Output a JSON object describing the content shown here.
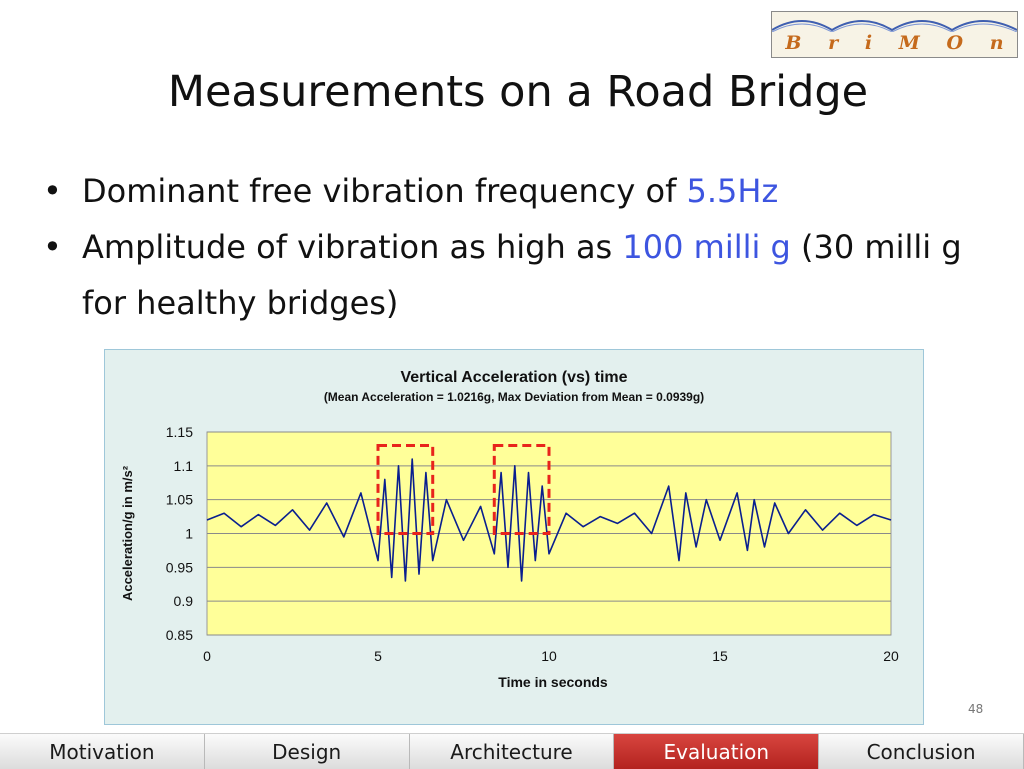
{
  "logo": {
    "letters": [
      "B",
      "r",
      "i",
      "M",
      "O",
      "n"
    ]
  },
  "slide": {
    "title": "Measurements on a Road Bridge",
    "bullets": [
      {
        "parts": [
          {
            "text": "Dominant free vibration frequency of ",
            "accent": false
          },
          {
            "text": "5.5Hz",
            "accent": true
          }
        ]
      },
      {
        "parts": [
          {
            "text": "Amplitude of vibration as high as ",
            "accent": false
          },
          {
            "text": "100 milli g",
            "accent": true
          },
          {
            "text": " (30 milli g for healthy bridges)",
            "accent": false
          }
        ]
      }
    ],
    "slide_number": "48"
  },
  "nav": {
    "items": [
      "Motivation",
      "Design",
      "Architecture",
      "Evaluation",
      "Conclusion"
    ],
    "active": "Evaluation"
  },
  "colors": {
    "accent_text": "#3d55e0",
    "plot_background": "#ffff99",
    "series_line": "#0a1f8f",
    "highlight_box": "#e8241c",
    "nav_active": "#c0302a"
  },
  "chart_data": {
    "type": "line",
    "title": "Vertical Acceleration (vs) time",
    "subtitle": "(Mean Acceleration  = 1.0216g,  Max Deviation  from Mean = 0.0939g)",
    "xlabel": "Time in seconds",
    "ylabel": "Acceleration/g in m/s²",
    "xlim": [
      0,
      20
    ],
    "ylim": [
      0.85,
      1.15
    ],
    "xticks": [
      "0",
      "5",
      "10",
      "15",
      "20"
    ],
    "yticks": [
      "0.85",
      "0.9",
      "0.95",
      "1",
      "1.05",
      "1.1",
      "1.15"
    ],
    "grid": true,
    "legend": "none",
    "mean": 1.0216,
    "max_deviation": 0.0939,
    "dominant_frequency_hz": 5.5,
    "series": [
      {
        "points": [
          [
            0.0,
            1.02
          ],
          [
            0.5,
            1.03
          ],
          [
            1.0,
            1.01
          ],
          [
            1.5,
            1.028
          ],
          [
            2.0,
            1.012
          ],
          [
            2.5,
            1.035
          ],
          [
            3.0,
            1.005
          ],
          [
            3.5,
            1.045
          ],
          [
            4.0,
            0.995
          ],
          [
            4.5,
            1.06
          ],
          [
            5.0,
            0.96
          ],
          [
            5.2,
            1.08
          ],
          [
            5.4,
            0.935
          ],
          [
            5.6,
            1.1
          ],
          [
            5.8,
            0.93
          ],
          [
            6.0,
            1.11
          ],
          [
            6.2,
            0.94
          ],
          [
            6.4,
            1.09
          ],
          [
            6.6,
            0.96
          ],
          [
            7.0,
            1.05
          ],
          [
            7.5,
            0.99
          ],
          [
            8.0,
            1.04
          ],
          [
            8.4,
            0.97
          ],
          [
            8.6,
            1.09
          ],
          [
            8.8,
            0.95
          ],
          [
            9.0,
            1.1
          ],
          [
            9.2,
            0.93
          ],
          [
            9.4,
            1.09
          ],
          [
            9.6,
            0.96
          ],
          [
            9.8,
            1.07
          ],
          [
            10.0,
            0.97
          ],
          [
            10.5,
            1.03
          ],
          [
            11.0,
            1.01
          ],
          [
            11.5,
            1.025
          ],
          [
            12.0,
            1.015
          ],
          [
            12.5,
            1.03
          ],
          [
            13.0,
            1.0
          ],
          [
            13.5,
            1.07
          ],
          [
            13.8,
            0.96
          ],
          [
            14.0,
            1.06
          ],
          [
            14.3,
            0.98
          ],
          [
            14.6,
            1.05
          ],
          [
            15.0,
            0.99
          ],
          [
            15.5,
            1.06
          ],
          [
            15.8,
            0.975
          ],
          [
            16.0,
            1.05
          ],
          [
            16.3,
            0.98
          ],
          [
            16.6,
            1.045
          ],
          [
            17.0,
            1.0
          ],
          [
            17.5,
            1.035
          ],
          [
            18.0,
            1.005
          ],
          [
            18.5,
            1.03
          ],
          [
            19.0,
            1.012
          ],
          [
            19.5,
            1.028
          ],
          [
            20.0,
            1.02
          ]
        ]
      }
    ],
    "highlights": [
      {
        "x": [
          5.0,
          6.6
        ],
        "y": [
          1.0,
          1.13
        ]
      },
      {
        "x": [
          8.4,
          10.0
        ],
        "y": [
          1.0,
          1.13
        ]
      }
    ]
  }
}
